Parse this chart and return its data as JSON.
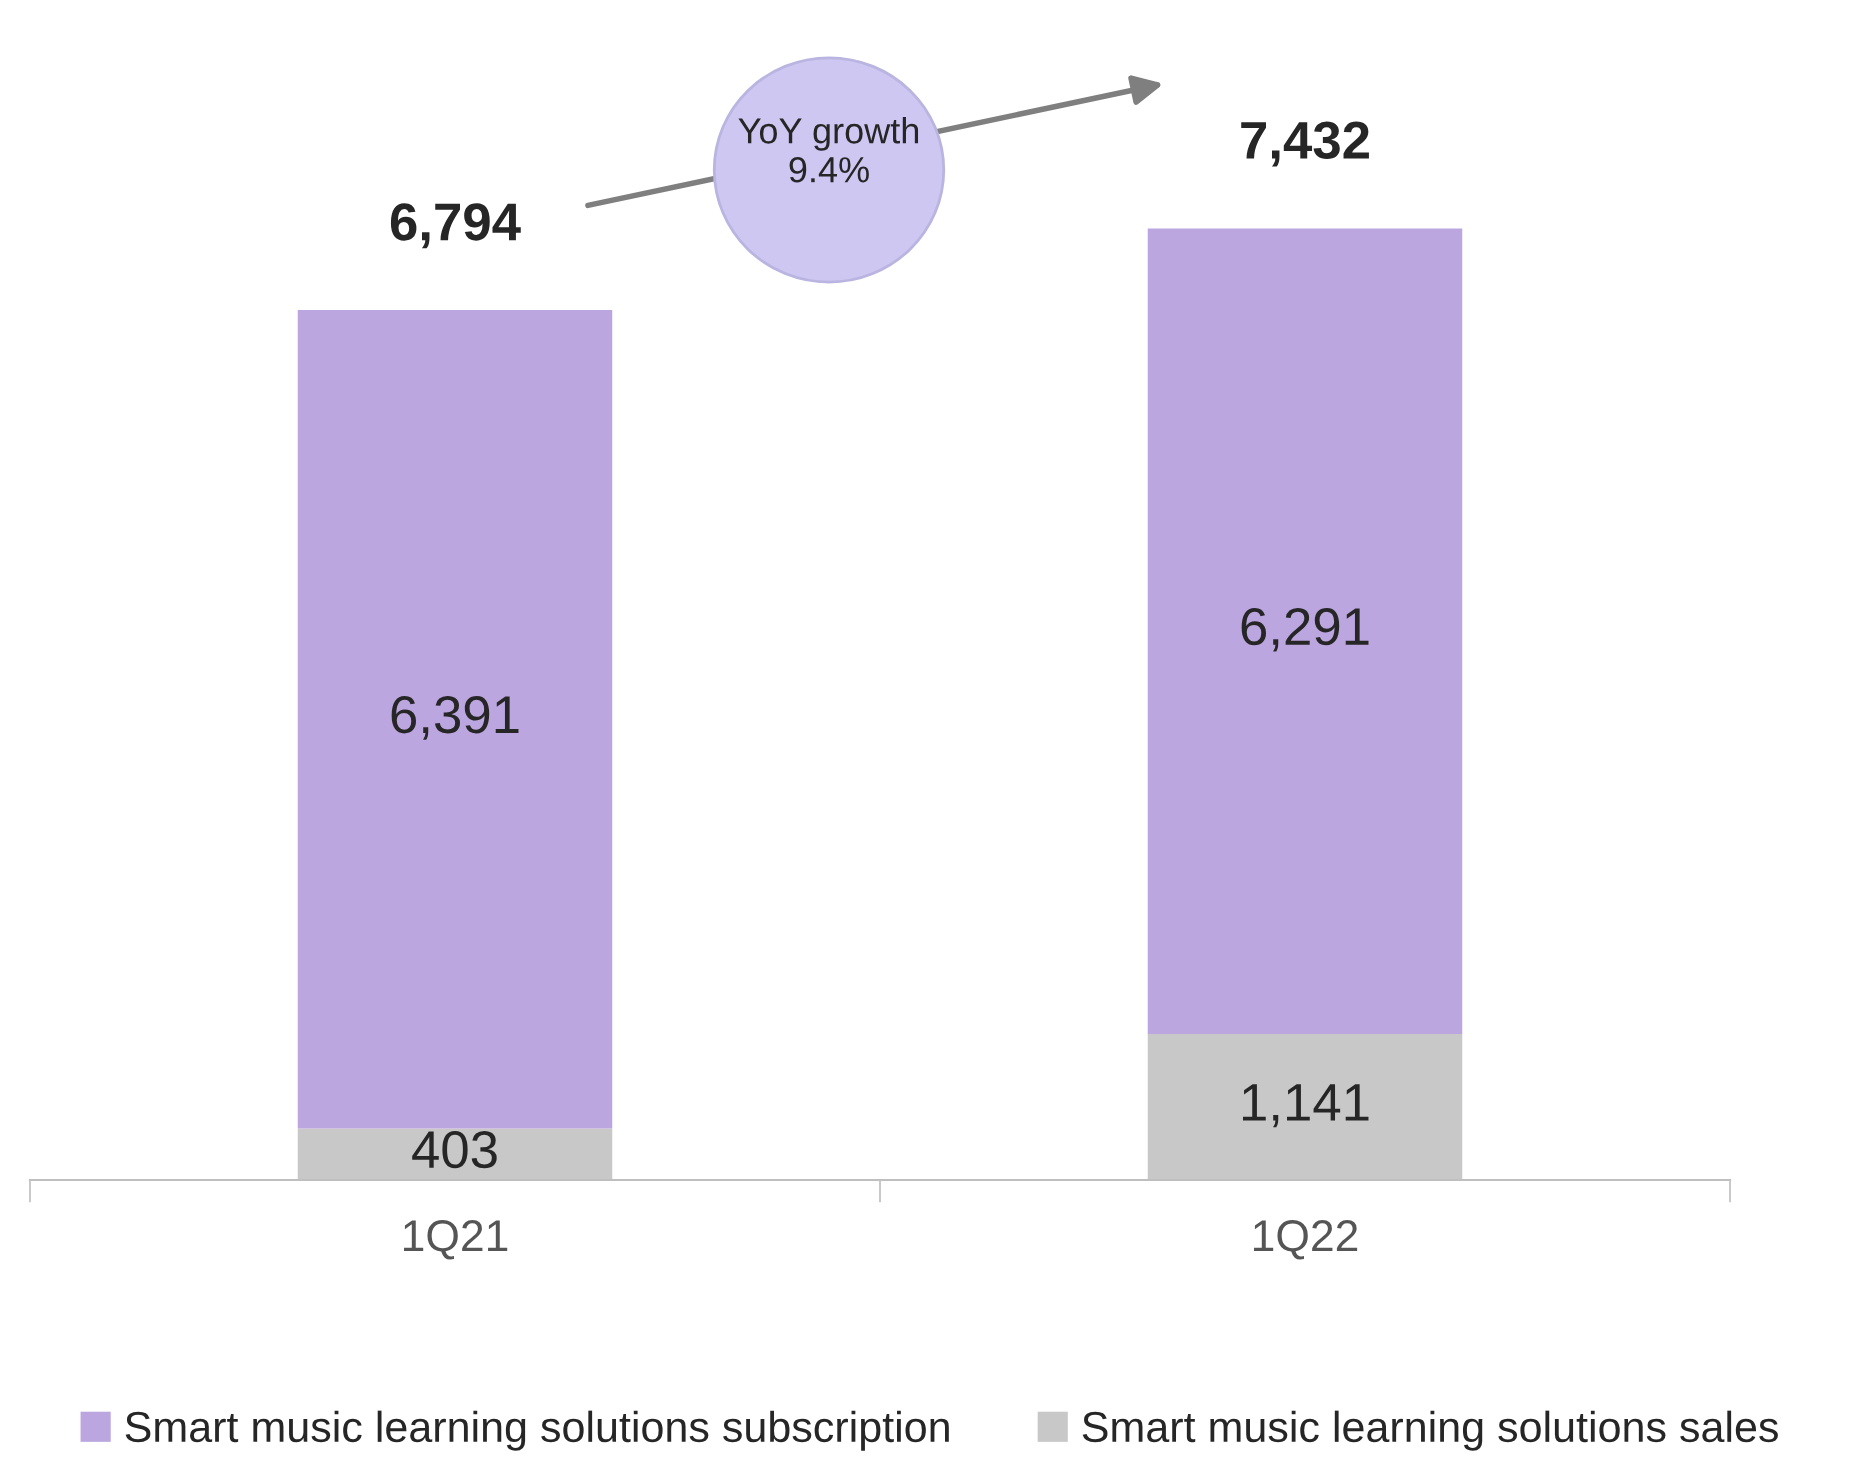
{
  "chart_data": {
    "type": "bar",
    "stacked": true,
    "categories": [
      "1Q21",
      "1Q22"
    ],
    "series": [
      {
        "name": "Smart music learning solutions sales",
        "color": "#c8c8c8",
        "values": [
          403,
          1141
        ],
        "value_labels": [
          "403",
          "1,141"
        ]
      },
      {
        "name": "Smart music learning solutions subscription",
        "color": "#bca6e0",
        "values": [
          6391,
          6291
        ],
        "value_labels": [
          "6,391",
          "6,291"
        ]
      }
    ],
    "totals": [
      "6,794",
      "7,432"
    ],
    "annotations": [
      "YoY growth\n9.4%"
    ],
    "legend": "bottom",
    "grid": false
  }
}
